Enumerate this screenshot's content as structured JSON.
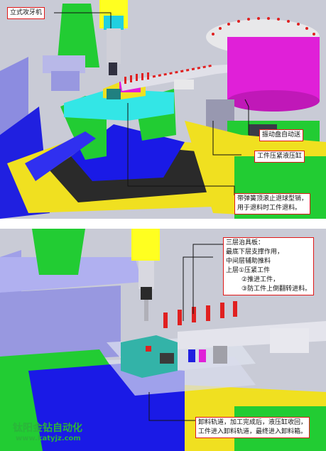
{
  "top_panel": {
    "labels": {
      "drill": "立式攻牙机",
      "vibrator": "振动盘自动送",
      "cylinder": "工件压紧液压缸",
      "pin": [
        "带弹簧顶滚止退球型销，",
        "用于退料时工件退料。"
      ]
    }
  },
  "bottom_panel": {
    "fixture_note": [
      "三层治具板：",
      "最底下层支撑作用，",
      "中间层辅助推料",
      "上层①压紧工件",
      "②推进工件，",
      "③防工件上倒翻转进料。"
    ],
    "track_note": [
      "卸料轨道，加工完成后，液压缸收回，",
      "工件进入卸料轨道，最终进入卸料箱。"
    ],
    "watermark": {
      "company": "钛阳金钻自动化",
      "site": "www.katyjz.com"
    }
  },
  "colors": {
    "callout_border": "#e01818",
    "drill_body": "#22cc33",
    "base_blue": "#1a1ae6",
    "cyan_block": "#33e6e6",
    "magenta_bowl": "#e020d8",
    "track_red": "#e02020",
    "machine_gray": "#b8b8c8",
    "frame_violet": "#8c8ce0",
    "plate_yellow": "#f0e020",
    "watermark": "#2bb53a"
  }
}
